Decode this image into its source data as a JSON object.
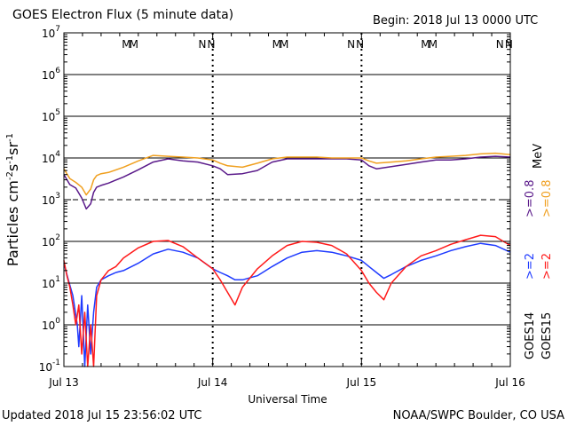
{
  "header": {
    "title": "GOES Electron Flux (5 minute data)",
    "begin": "Begin: 2018 Jul 13 0000 UTC"
  },
  "footer": {
    "updated": "Updated 2018 Jul 15 23:56:02 UTC",
    "credit": "NOAA/SWPC Boulder, CO USA"
  },
  "colors": {
    "goes14_ge2": "#1f3bff",
    "goes15_ge2": "#ff1a1a",
    "goes14_ge08": "#5a1a8a",
    "goes15_ge08": "#f0a020",
    "marker_m": "#1f3bff",
    "marker_m2": "#ff1a1a"
  },
  "chart_data": {
    "type": "line",
    "title": "GOES Electron Flux (5 minute data)",
    "xlabel": "Universal Time",
    "ylabel": "Particles cm-2s-1sr-1",
    "y_scale": "log",
    "ylim": [
      0.1,
      10000000
    ],
    "x_range_days": [
      0,
      3
    ],
    "x_ticks": [
      {
        "day": 0,
        "label": "Jul 13"
      },
      {
        "day": 1,
        "label": "Jul 14"
      },
      {
        "day": 2,
        "label": "Jul 15"
      },
      {
        "day": 3,
        "label": "Jul 16"
      }
    ],
    "y_ticks": [
      {
        "base": "10",
        "exp": "-1"
      },
      {
        "base": "10",
        "exp": "0"
      },
      {
        "base": "10",
        "exp": "1"
      },
      {
        "base": "10",
        "exp": "2"
      },
      {
        "base": "10",
        "exp": "3"
      },
      {
        "base": "10",
        "exp": "4"
      },
      {
        "base": "10",
        "exp": "5"
      },
      {
        "base": "10",
        "exp": "6"
      },
      {
        "base": "10",
        "exp": "7"
      }
    ],
    "threshold_dashed": [
      1000
    ],
    "markers": [
      {
        "day": 0.42,
        "label": "M",
        "series": "GOES14"
      },
      {
        "day": 0.47,
        "label": "M",
        "series": "GOES15"
      },
      {
        "day": 0.93,
        "label": "N",
        "series": "GOES14"
      },
      {
        "day": 0.99,
        "label": "N",
        "series": "GOES15"
      },
      {
        "day": 1.43,
        "label": "M",
        "series": "GOES14"
      },
      {
        "day": 1.48,
        "label": "M",
        "series": "GOES15"
      },
      {
        "day": 1.93,
        "label": "N",
        "series": "GOES14"
      },
      {
        "day": 1.99,
        "label": "N",
        "series": "GOES15"
      },
      {
        "day": 2.43,
        "label": "M",
        "series": "GOES14"
      },
      {
        "day": 2.48,
        "label": "M",
        "series": "GOES15"
      },
      {
        "day": 2.93,
        "label": "N",
        "series": "GOES14"
      },
      {
        "day": 2.99,
        "label": "N",
        "series": "GOES15"
      }
    ],
    "legend": {
      "goes14": "GOES14",
      "goes15": "GOES15",
      "ge2": ">=2",
      "ge08": ">=0.8",
      "mev": "MeV"
    },
    "series": [
      {
        "name": "GOES14 >=0.8 MeV",
        "color": "#5a1a8a",
        "x": [
          0,
          0.04,
          0.08,
          0.12,
          0.15,
          0.18,
          0.2,
          0.22,
          0.25,
          0.3,
          0.4,
          0.5,
          0.6,
          0.7,
          0.8,
          0.9,
          1.0,
          1.05,
          1.1,
          1.2,
          1.3,
          1.4,
          1.5,
          1.6,
          1.7,
          1.8,
          1.9,
          2.0,
          2.05,
          2.1,
          2.2,
          2.3,
          2.4,
          2.5,
          2.6,
          2.7,
          2.8,
          2.9,
          3.0
        ],
        "y": [
          4000,
          2300,
          1900,
          1100,
          600,
          800,
          1500,
          2000,
          2200,
          2500,
          3500,
          5200,
          8000,
          9500,
          8500,
          8000,
          6500,
          5500,
          4000,
          4200,
          5000,
          8000,
          9500,
          9500,
          9500,
          9500,
          9500,
          9000,
          6500,
          5500,
          6200,
          7000,
          8000,
          9000,
          9000,
          9500,
          10500,
          11000,
          10500
        ]
      },
      {
        "name": "GOES15 >=0.8 MeV",
        "color": "#f0a020",
        "x": [
          0,
          0.04,
          0.08,
          0.12,
          0.15,
          0.18,
          0.2,
          0.22,
          0.25,
          0.3,
          0.4,
          0.5,
          0.6,
          0.7,
          0.8,
          0.9,
          1.0,
          1.05,
          1.1,
          1.2,
          1.3,
          1.4,
          1.5,
          1.6,
          1.7,
          1.8,
          1.9,
          2.0,
          2.05,
          2.1,
          2.2,
          2.3,
          2.4,
          2.5,
          2.6,
          2.7,
          2.8,
          2.9,
          3.0
        ],
        "y": [
          5500,
          3200,
          2600,
          2000,
          1300,
          1800,
          3000,
          3800,
          4200,
          4500,
          6000,
          8500,
          11500,
          11000,
          10500,
          10000,
          9000,
          7500,
          6500,
          6000,
          7500,
          9500,
          10500,
          10500,
          10500,
          10000,
          10000,
          10000,
          8500,
          7500,
          8000,
          8500,
          9500,
          10500,
          11000,
          11500,
          12500,
          13000,
          12000
        ]
      },
      {
        "name": "GOES14 >=2 MeV",
        "color": "#1f3bff",
        "x": [
          0,
          0.03,
          0.06,
          0.09,
          0.1,
          0.12,
          0.14,
          0.16,
          0.18,
          0.2,
          0.22,
          0.25,
          0.3,
          0.35,
          0.4,
          0.5,
          0.6,
          0.7,
          0.8,
          0.9,
          1.0,
          1.05,
          1.1,
          1.15,
          1.2,
          1.3,
          1.4,
          1.5,
          1.6,
          1.7,
          1.8,
          1.9,
          2.0,
          2.05,
          2.1,
          2.15,
          2.2,
          2.3,
          2.4,
          2.5,
          2.6,
          2.7,
          2.8,
          2.9,
          3.0
        ],
        "y": [
          30,
          12,
          5,
          1,
          0.3,
          5,
          0.1,
          3,
          0.2,
          2,
          8,
          12,
          15,
          18,
          20,
          30,
          50,
          65,
          55,
          40,
          22,
          18,
          15,
          12,
          12,
          15,
          25,
          40,
          55,
          60,
          55,
          45,
          35,
          25,
          18,
          13,
          16,
          25,
          35,
          45,
          60,
          75,
          90,
          80,
          55
        ]
      },
      {
        "name": "GOES15 >=2 MeV",
        "color": "#ff1a1a",
        "x": [
          0,
          0.02,
          0.04,
          0.06,
          0.08,
          0.1,
          0.12,
          0.14,
          0.16,
          0.18,
          0.2,
          0.22,
          0.25,
          0.3,
          0.35,
          0.4,
          0.5,
          0.6,
          0.7,
          0.8,
          0.9,
          1.0,
          1.05,
          1.1,
          1.15,
          1.2,
          1.3,
          1.4,
          1.5,
          1.6,
          1.7,
          1.8,
          1.9,
          2.0,
          2.05,
          2.1,
          2.15,
          2.2,
          2.3,
          2.4,
          2.5,
          2.6,
          2.7,
          2.8,
          2.9,
          3.0
        ],
        "y": [
          35,
          15,
          8,
          3,
          1,
          3,
          0.2,
          2,
          0.1,
          1,
          0.1,
          5,
          12,
          20,
          25,
          40,
          70,
          100,
          105,
          75,
          40,
          22,
          12,
          6,
          3,
          8,
          22,
          45,
          80,
          100,
          95,
          80,
          50,
          20,
          10,
          6,
          4,
          10,
          25,
          45,
          60,
          85,
          110,
          140,
          130,
          80
        ]
      }
    ]
  }
}
